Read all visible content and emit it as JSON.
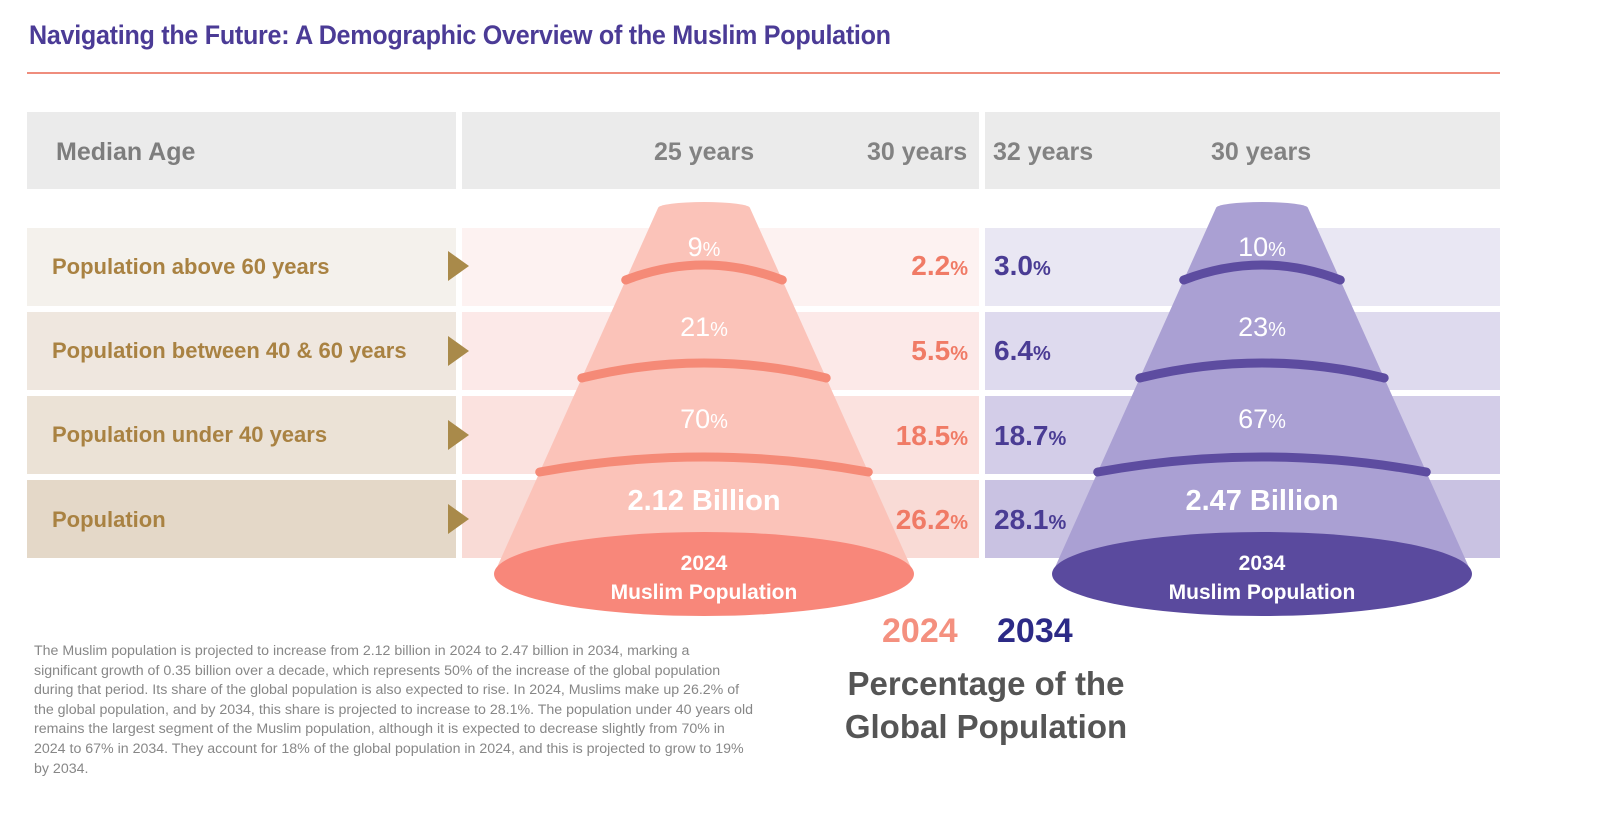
{
  "title": "Navigating the Future: A Demographic Overview of the Muslim Population",
  "header": {
    "label": "Median Age"
  },
  "chart_data": {
    "type": "table",
    "rows": [
      {
        "label": "Population above 60 years"
      },
      {
        "label": "Population between 40 & 60 years"
      },
      {
        "label": "Population under 40 years"
      },
      {
        "label": "Population"
      }
    ],
    "median_age": {
      "muslim_2024": "25 years",
      "global_2024": "30 years",
      "global_2034": "32 years",
      "muslim_2034": "30 years"
    },
    "global_share": {
      "y2024": [
        "2.2",
        "5.5",
        "18.5",
        "26.2"
      ],
      "y2034": [
        "3.0",
        "6.4",
        "18.7",
        "28.1"
      ],
      "unit": "%"
    },
    "cones": [
      {
        "segments": [
          "9",
          "21",
          "70"
        ],
        "unit": "%",
        "total": "2.12 Billion",
        "year": "2024",
        "caption": "Muslim Population",
        "fill": "#fbc3b9",
        "band": "#f58a77",
        "base": "#f8877a"
      },
      {
        "segments": [
          "10",
          "23",
          "67"
        ],
        "unit": "%",
        "total": "2.47 Billion",
        "year": "2034",
        "caption": "Muslim Population",
        "fill": "#aaa0d3",
        "band": "#5d4ca0",
        "base": "#5a4a9e"
      }
    ]
  },
  "colors": {
    "row_left": [
      "#f4f1ec",
      "#efe7df",
      "#ebe2d6",
      "#e4d8c8"
    ],
    "row_mid": [
      "#fdf2f1",
      "#fce9e8",
      "#fbe2df",
      "#f9dbd6"
    ],
    "row_right": [
      "#e9e7f3",
      "#dedaee",
      "#d3cde8",
      "#c9c2e2"
    ]
  },
  "description": "The Muslim population is projected to increase from 2.12 billion in 2024 to 2.47 billion in 2034, marking a significant growth of 0.35 billion over a decade, which represents 50% of the increase of the global population during that period. Its share of the global population is also expected to rise. In 2024, Muslims make up 26.2% of the global population, and by 2034, this share is projected to increase to 28.1%. The population under 40 years old remains the largest segment of the Muslim population, although it is expected to decrease slightly from 70% in 2024 to 67% in 2034. They account for 18% of the global population in 2024, and this is projected to grow to 19% by 2034.",
  "legend": {
    "year_2024": "2024",
    "year_2034": "2034",
    "caption_line1": "Percentage of the",
    "caption_line2": "Global Population"
  }
}
